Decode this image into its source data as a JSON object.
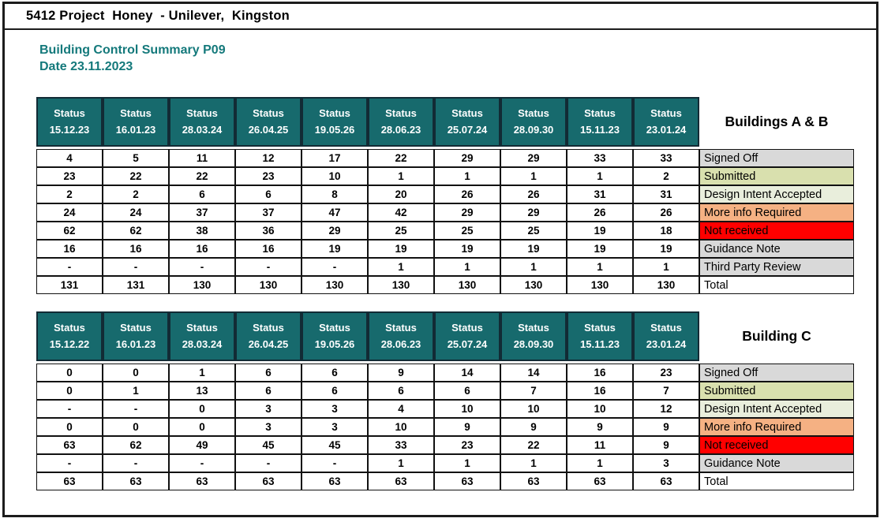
{
  "header": {
    "title": "5412 Project  Honey  - Unilever,  Kingston"
  },
  "summary": {
    "heading": "Building Control Summary P09",
    "date": "Date 23.11.2023"
  },
  "colors": {
    "teal_header_bg": "#176a6d",
    "heading_text": "#14797b",
    "grey": "#d9d9d9",
    "green": "#d9e0ae",
    "light_green": "#e9eedc",
    "orange": "#f5b183",
    "red": "#ff0000",
    "white": "#ffffff"
  },
  "tables": [
    {
      "building": "Buildings A & B",
      "column_title": "Status",
      "dates": [
        "15.12.23",
        "16.01.23",
        "28.03.24",
        "26.04.25",
        "19.05.26",
        "28.06.23",
        "25.07.24",
        "28.09.30",
        "15.11.23",
        "23.01.24"
      ],
      "rows": [
        {
          "label": "Signed Off",
          "color": "grey",
          "values": [
            "4",
            "5",
            "11",
            "12",
            "17",
            "22",
            "29",
            "29",
            "33",
            "33"
          ]
        },
        {
          "label": "Submitted",
          "color": "green",
          "values": [
            "23",
            "22",
            "22",
            "23",
            "10",
            "1",
            "1",
            "1",
            "1",
            "2"
          ]
        },
        {
          "label": "Design Intent Accepted",
          "color": "light_green",
          "values": [
            "2",
            "2",
            "6",
            "6",
            "8",
            "20",
            "26",
            "26",
            "31",
            "31"
          ]
        },
        {
          "label": "More info Required",
          "color": "orange",
          "values": [
            "24",
            "24",
            "37",
            "37",
            "47",
            "42",
            "29",
            "29",
            "26",
            "26"
          ]
        },
        {
          "label": "Not received",
          "color": "red",
          "values": [
            "62",
            "62",
            "38",
            "36",
            "29",
            "25",
            "25",
            "25",
            "19",
            "18"
          ]
        },
        {
          "label": "Guidance Note",
          "color": "grey",
          "values": [
            "16",
            "16",
            "16",
            "16",
            "19",
            "19",
            "19",
            "19",
            "19",
            "19"
          ]
        },
        {
          "label": "Third Party Review",
          "color": "grey",
          "values": [
            "-",
            "-",
            "-",
            "-",
            "-",
            "1",
            "1",
            "1",
            "1",
            "1"
          ]
        },
        {
          "label": "Total",
          "color": "white",
          "values": [
            "131",
            "131",
            "130",
            "130",
            "130",
            "130",
            "130",
            "130",
            "130",
            "130"
          ]
        }
      ]
    },
    {
      "building": "Building C",
      "column_title": "Status",
      "dates": [
        "15.12.22",
        "16.01.23",
        "28.03.24",
        "26.04.25",
        "19.05.26",
        "28.06.23",
        "25.07.24",
        "28.09.30",
        "15.11.23",
        "23.01.24"
      ],
      "rows": [
        {
          "label": "Signed Off",
          "color": "grey",
          "values": [
            "0",
            "0",
            "1",
            "6",
            "6",
            "9",
            "14",
            "14",
            "16",
            "23"
          ]
        },
        {
          "label": "Submitted",
          "color": "green",
          "values": [
            "0",
            "1",
            "13",
            "6",
            "6",
            "6",
            "6",
            "7",
            "16",
            "7"
          ]
        },
        {
          "label": "Design Intent Accepted",
          "color": "light_green",
          "values": [
            "-",
            "-",
            "0",
            "3",
            "3",
            "4",
            "10",
            "10",
            "10",
            "12"
          ]
        },
        {
          "label": "More info Required",
          "color": "orange",
          "values": [
            "0",
            "0",
            "0",
            "3",
            "3",
            "10",
            "9",
            "9",
            "9",
            "9"
          ]
        },
        {
          "label": "Not received",
          "color": "red",
          "values": [
            "63",
            "62",
            "49",
            "45",
            "45",
            "33",
            "23",
            "22",
            "11",
            "9"
          ]
        },
        {
          "label": "Guidance Note",
          "color": "grey",
          "values": [
            "-",
            "-",
            "-",
            "-",
            "-",
            "1",
            "1",
            "1",
            "1",
            "3"
          ]
        },
        {
          "label": "Total",
          "color": "white",
          "values": [
            "63",
            "63",
            "63",
            "63",
            "63",
            "63",
            "63",
            "63",
            "63",
            "63"
          ]
        }
      ]
    }
  ]
}
